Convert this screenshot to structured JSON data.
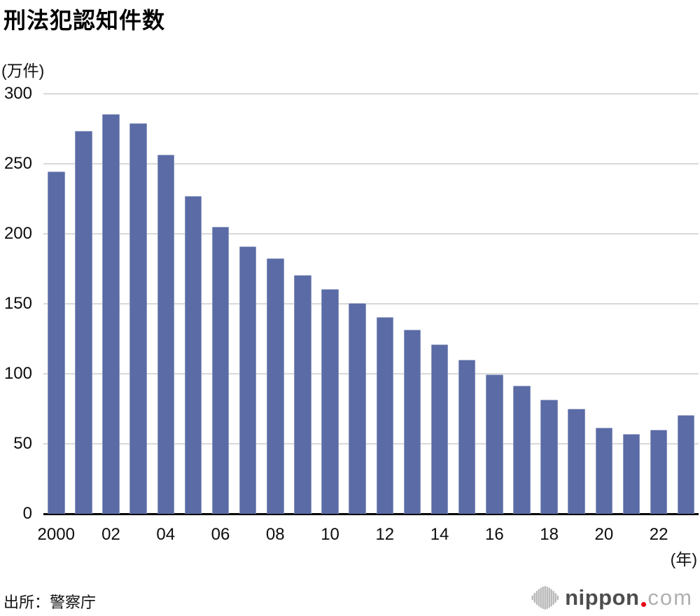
{
  "header": {
    "title": "刑法犯認知件数"
  },
  "source_note": "出所：警察庁",
  "logo": {
    "name": "nippon.com",
    "word_bold": "nippon",
    "word_light": "com"
  },
  "chart_data": {
    "type": "bar",
    "title": "刑法犯認知件数",
    "ylabel": "(万件)",
    "xlabel": "(年)",
    "ylim": [
      0,
      300
    ],
    "yticks": [
      300,
      250,
      200,
      150,
      100,
      50,
      0
    ],
    "grid": true,
    "legend": "none",
    "bar_color": "#5a6ba5",
    "gridline_color": "#d9d9d9",
    "categories": [
      2000,
      2001,
      2002,
      2003,
      2004,
      2005,
      2006,
      2007,
      2008,
      2009,
      2010,
      2011,
      2012,
      2013,
      2014,
      2015,
      2016,
      2017,
      2018,
      2019,
      2020,
      2021,
      2022,
      2023
    ],
    "x_tick_labels": [
      "2000",
      "02",
      "04",
      "06",
      "08",
      "10",
      "12",
      "14",
      "16",
      "18",
      "20",
      "22"
    ],
    "x_tick_every": 2,
    "values": [
      244.3,
      273.5,
      285.4,
      279.0,
      256.3,
      226.9,
      205.1,
      190.9,
      182.6,
      170.3,
      160.4,
      150.3,
      140.3,
      131.4,
      121.2,
      109.9,
      99.6,
      91.5,
      81.7,
      74.9,
      61.4,
      56.8,
      60.1,
      70.3
    ]
  }
}
